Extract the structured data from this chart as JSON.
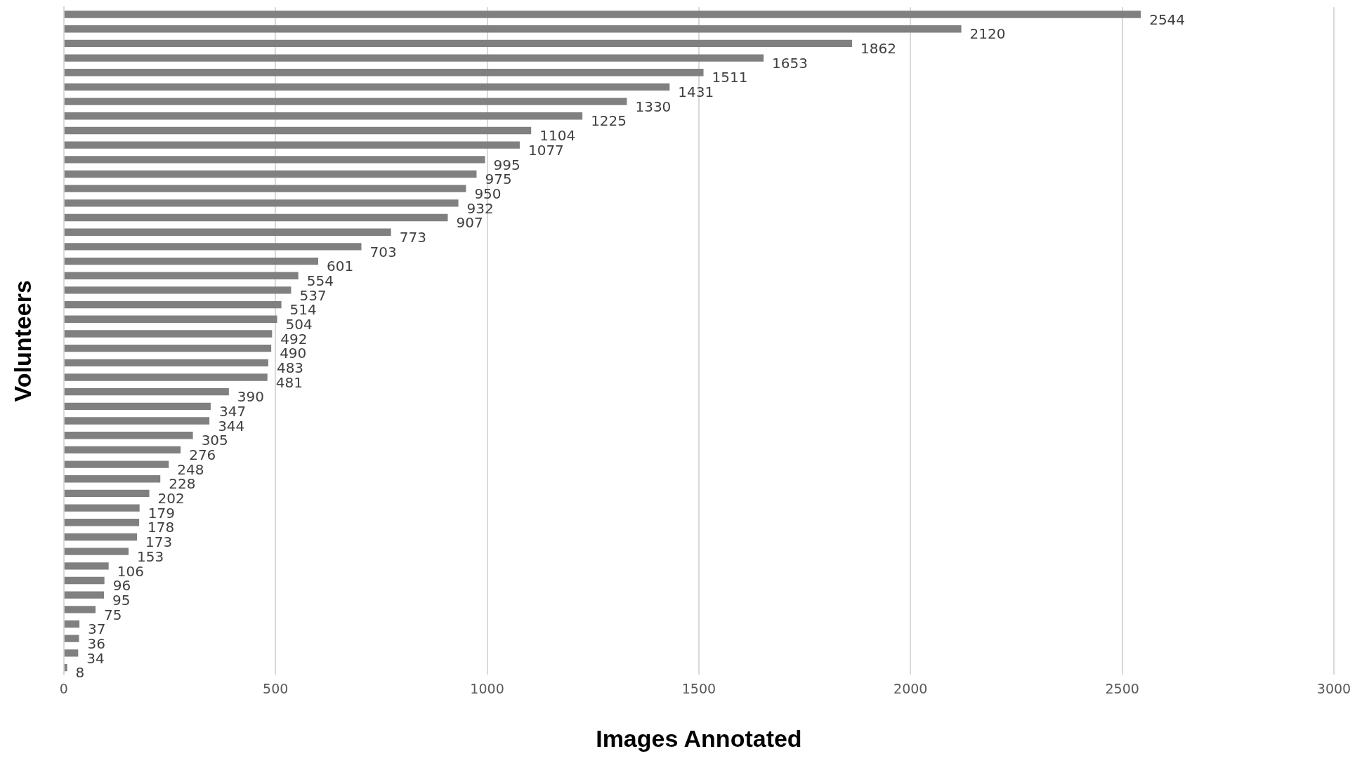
{
  "chart_data": {
    "type": "bar",
    "orientation": "horizontal",
    "xlabel": "Images Annotated",
    "ylabel": "Volunteers",
    "categories": [
      null,
      null,
      null,
      null,
      null,
      null,
      null,
      null,
      null,
      null,
      null,
      null,
      null,
      null,
      null,
      null,
      null,
      null,
      null,
      null,
      null,
      null,
      null,
      null,
      null,
      null,
      null,
      null,
      null,
      null,
      null,
      null,
      null,
      null,
      null,
      null,
      null,
      null,
      null,
      null,
      null,
      null,
      null,
      null,
      null,
      null
    ],
    "values": [
      2544,
      2120,
      1862,
      1653,
      1511,
      1431,
      1330,
      1225,
      1104,
      1077,
      995,
      975,
      950,
      932,
      907,
      773,
      703,
      601,
      554,
      537,
      514,
      504,
      492,
      490,
      483,
      481,
      390,
      347,
      344,
      305,
      276,
      248,
      228,
      202,
      179,
      178,
      173,
      153,
      106,
      96,
      95,
      75,
      37,
      36,
      34,
      8
    ],
    "color": "#808080",
    "xlim": [
      0,
      3000
    ],
    "xticks": [
      0,
      500,
      1000,
      1500,
      2000,
      2500,
      3000
    ],
    "grid": "x",
    "data_labels": true,
    "legend": false
  }
}
